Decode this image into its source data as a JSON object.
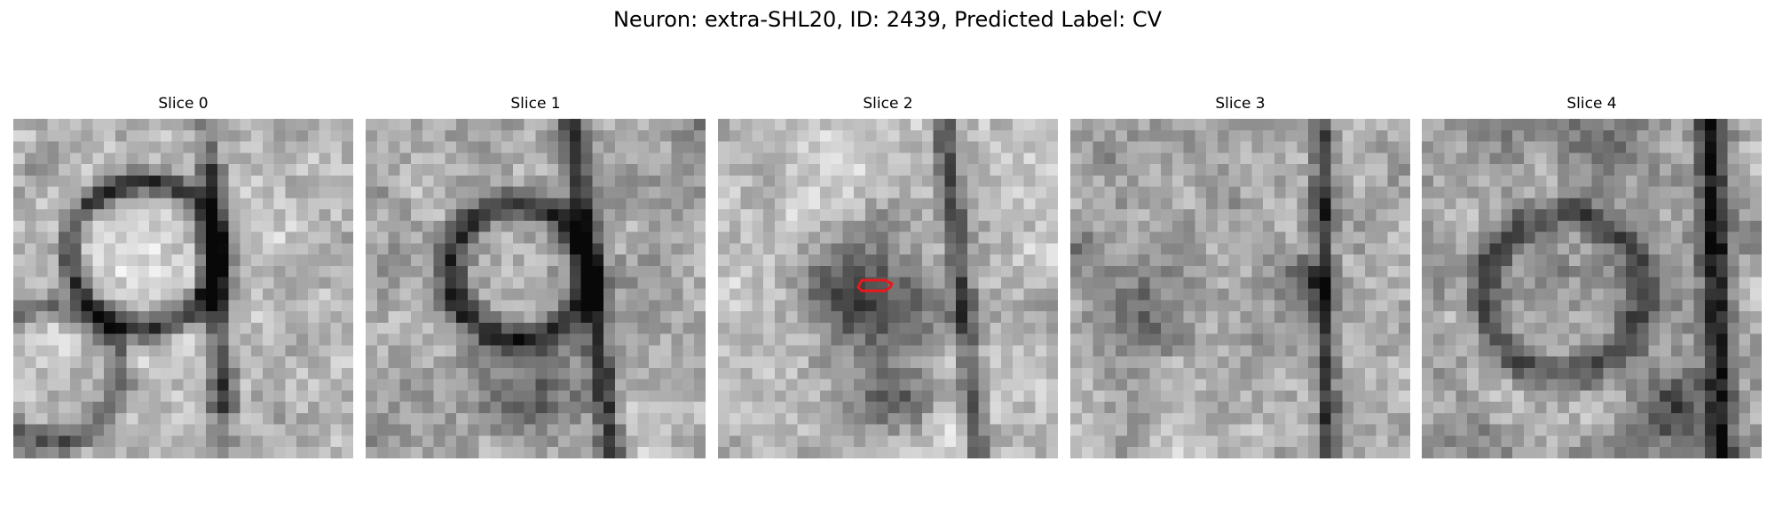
{
  "figure": {
    "title": "Neuron: extra-SHL20, ID: 2439, Predicted Label: CV"
  },
  "slices": [
    {
      "title": "Slice 0",
      "pattern": "cell-body",
      "seed": 11
    },
    {
      "title": "Slice 1",
      "pattern": "noisy-ring",
      "seed": 23
    },
    {
      "title": "Slice 2",
      "pattern": "dark-center",
      "seed": 37,
      "contour": true
    },
    {
      "title": "Slice 3",
      "pattern": "speckle",
      "seed": 51
    },
    {
      "title": "Slice 4",
      "pattern": "edge-vessel",
      "seed": 67
    }
  ],
  "colors": {
    "contour": "#e8191b"
  }
}
